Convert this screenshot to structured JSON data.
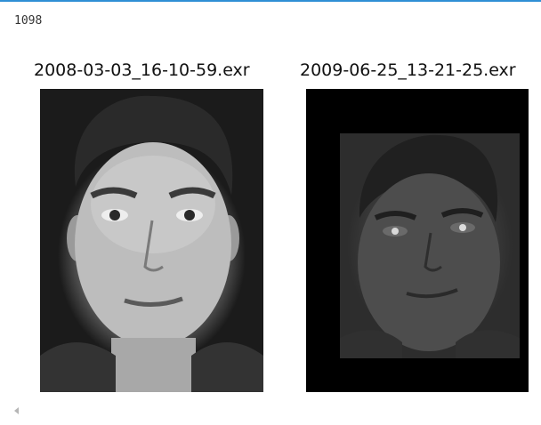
{
  "cell_output": {
    "count": "1098"
  },
  "images": [
    {
      "title": "2008-03-03_16-10-59.exr"
    },
    {
      "title": "2009-06-25_13-21-25.exr"
    }
  ],
  "colors": {
    "accent": "#2f8fd5",
    "letterbox": "#000000"
  },
  "icons": {
    "scroll_left": "scroll-left-arrow-icon"
  }
}
